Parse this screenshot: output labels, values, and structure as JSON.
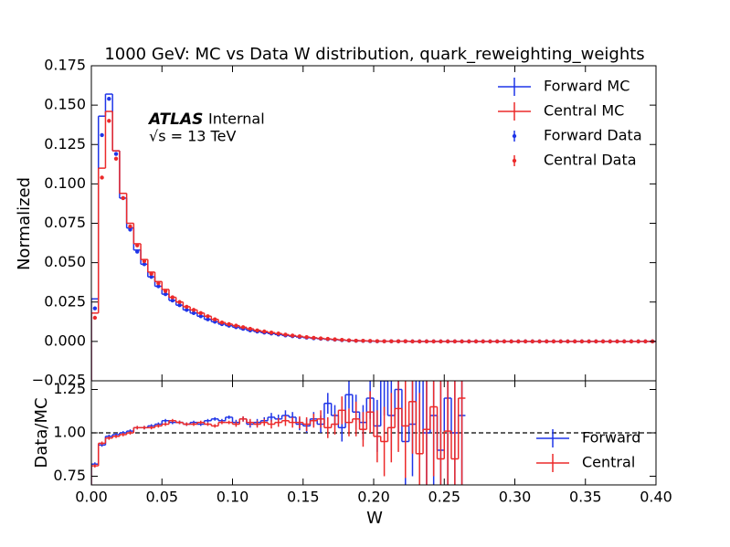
{
  "chart_data": [
    {
      "type": "histogram",
      "title": "1000 GeV: MC vs Data W distribution, quark_reweighting_weights",
      "ylabel": "Normalized",
      "annotations": [
        "ATLAS",
        "Internal",
        "√s = 13 TeV"
      ],
      "legend": "upper right",
      "xlim": [
        0,
        0.4
      ],
      "xticks": [
        0,
        0.05,
        0.1,
        0.15,
        0.2,
        0.25,
        0.3,
        0.35,
        0.4
      ],
      "ylim": [
        -0.025,
        0.175
      ],
      "yticks": [
        {
          "value": -0.025,
          "label": "−0.025"
        },
        {
          "value": 0,
          "label": "0.000"
        },
        0.025,
        {
          "value": 0.05,
          "label": "0.050"
        },
        0.075,
        {
          "value": 0.1,
          "label": "0.100"
        },
        0.125,
        {
          "value": 0.15,
          "label": "0.150"
        },
        0.175
      ],
      "bins": [
        0,
        0.005,
        0.01,
        0.015,
        0.02,
        0.025,
        0.03,
        0.035,
        0.04,
        0.045,
        0.05,
        0.055,
        0.06,
        0.065,
        0.07,
        0.075,
        0.08,
        0.085,
        0.09,
        0.095,
        0.1,
        0.105,
        0.11,
        0.115,
        0.12,
        0.125,
        0.13,
        0.135,
        0.14,
        0.145,
        0.15,
        0.155,
        0.16,
        0.165,
        0.17,
        0.175,
        0.18,
        0.185,
        0.19,
        0.195,
        0.2,
        0.205,
        0.21,
        0.215,
        0.22,
        0.225,
        0.23,
        0.235,
        0.24,
        0.245,
        0.25,
        0.255,
        0.26,
        0.265,
        0.27,
        0.275,
        0.28,
        0.285,
        0.29,
        0.295,
        0.3,
        0.305,
        0.31,
        0.315,
        0.32,
        0.325,
        0.33,
        0.335,
        0.34,
        0.345,
        0.35,
        0.355,
        0.36,
        0.365,
        0.37,
        0.375,
        0.38,
        0.385,
        0.39,
        0.395,
        0.4
      ],
      "series": [
        {
          "name": "Forward MC",
          "color": "#1f35e8",
          "style": "step",
          "values": [
            0.027,
            0.143,
            0.157,
            0.121,
            0.091,
            0.072,
            0.058,
            0.049,
            0.041,
            0.035,
            0.03,
            0.026,
            0.023,
            0.02,
            0.018,
            0.016,
            0.014,
            0.0125,
            0.011,
            0.01,
            0.009,
            0.008,
            0.007,
            0.0063,
            0.0056,
            0.005,
            0.0044,
            0.0038,
            0.0033,
            0.0028,
            0.0024,
            0.002,
            0.0017,
            0.0014,
            0.0011,
            0.0008,
            0.0006,
            0.0004,
            0.0003,
            0.0002,
            0.0001,
            0.0001,
            0.0001,
            0.0001,
            0.0001,
            0,
            0,
            0,
            0,
            0,
            0,
            0,
            0,
            0,
            0,
            0,
            0,
            0,
            0,
            0,
            0,
            0,
            0,
            0,
            0,
            0,
            0,
            0,
            0,
            0,
            0,
            0,
            0,
            0,
            0,
            0,
            0,
            0,
            0,
            0
          ]
        },
        {
          "name": "Central MC",
          "color": "#ec2a2a",
          "style": "step",
          "values": [
            0.018,
            0.11,
            0.146,
            0.121,
            0.094,
            0.075,
            0.062,
            0.052,
            0.044,
            0.038,
            0.033,
            0.028,
            0.025,
            0.022,
            0.02,
            0.018,
            0.016,
            0.014,
            0.012,
            0.011,
            0.01,
            0.009,
            0.008,
            0.007,
            0.0063,
            0.0056,
            0.005,
            0.0043,
            0.0037,
            0.0032,
            0.0027,
            0.0023,
            0.0019,
            0.0016,
            0.0013,
            0.001,
            0.0007,
            0.0005,
            0.0004,
            0.0003,
            0.0002,
            0.0001,
            0.0001,
            0.0001,
            0.0001,
            0,
            0,
            0,
            0,
            0,
            0,
            0,
            0,
            0,
            0,
            0,
            0,
            0,
            0,
            0,
            0,
            0,
            0,
            0,
            0,
            0,
            0,
            0,
            0,
            0,
            0,
            0,
            0,
            0,
            0,
            0,
            0,
            0,
            0,
            0
          ]
        },
        {
          "name": "Forward Data",
          "color": "#1f35e8",
          "style": "points",
          "values": [
            0.021,
            0.131,
            0.154,
            0.119,
            0.091,
            0.071,
            0.057,
            0.049,
            0.041,
            0.035,
            0.03,
            0.026,
            0.023,
            0.02,
            0.018,
            0.016,
            0.014,
            0.0125,
            0.011,
            0.01,
            0.009,
            0.008,
            0.007,
            0.0063,
            0.0056,
            0.005,
            0.0044,
            0.0038,
            0.0033,
            0.0028,
            0.0024,
            0.002,
            0.0017,
            0.0014,
            0.0011,
            0.0008,
            0.0006,
            0.0004,
            0.0003,
            0.0002,
            0.0001,
            0.0001,
            0.0001,
            0.0001,
            0.0001,
            0,
            0,
            0,
            0,
            0,
            0,
            0,
            0,
            0,
            0,
            0,
            0,
            0,
            0,
            0,
            0,
            0,
            0,
            0,
            0,
            0,
            0,
            0,
            0,
            0,
            0,
            0,
            0,
            0,
            0,
            0,
            0,
            0,
            0,
            0
          ]
        },
        {
          "name": "Central Data",
          "color": "#ec2a2a",
          "style": "points",
          "values": [
            0.015,
            0.104,
            0.14,
            0.116,
            0.091,
            0.073,
            0.061,
            0.051,
            0.043,
            0.037,
            0.032,
            0.028,
            0.025,
            0.022,
            0.02,
            0.018,
            0.016,
            0.014,
            0.012,
            0.011,
            0.01,
            0.009,
            0.008,
            0.007,
            0.0063,
            0.0056,
            0.005,
            0.0043,
            0.0037,
            0.0032,
            0.0027,
            0.0023,
            0.0019,
            0.0016,
            0.0013,
            0.001,
            0.0007,
            0.0005,
            0.0004,
            0.0003,
            0.0002,
            0.0001,
            0.0001,
            0.0001,
            0.0001,
            0,
            0,
            0,
            0,
            0,
            0,
            0,
            0,
            0,
            0,
            0,
            0,
            0,
            0,
            0,
            0,
            0,
            0,
            0,
            0,
            0,
            0,
            0,
            0,
            0,
            0,
            0,
            0,
            0,
            0,
            0,
            0,
            0,
            0,
            0
          ]
        }
      ]
    },
    {
      "type": "ratio",
      "xlabel": "W",
      "ylabel": "Data/MC",
      "legend": "lower right",
      "reference_line": 1,
      "xlim": [
        0,
        0.4
      ],
      "xticks": [
        {
          "value": 0,
          "label": "0.00"
        },
        0.05,
        {
          "value": 0.1,
          "label": "0.10"
        },
        0.15,
        {
          "value": 0.2,
          "label": "0.20"
        },
        0.25,
        {
          "value": 0.3,
          "label": "0.30"
        },
        0.35,
        {
          "value": 0.4,
          "label": "0.40"
        }
      ],
      "ylim": [
        0.7,
        1.3
      ],
      "yticks": [
        0.75,
        {
          "value": 1,
          "label": "1.00"
        },
        1.25
      ],
      "series": [
        {
          "name": "Forward",
          "color": "#1f35e8",
          "values": [
            0.82,
            0.93,
            0.98,
            0.99,
            1.0,
            1.01,
            1.03,
            1.03,
            1.04,
            1.05,
            1.07,
            1.06,
            1.06,
            1.05,
            1.06,
            1.05,
            1.07,
            1.08,
            1.07,
            1.09,
            1.06,
            1.08,
            1.05,
            1.06,
            1.07,
            1.09,
            1.08,
            1.1,
            1.09,
            1.05,
            1.04,
            1.08,
            1.05,
            1.17,
            1.1,
            1.03,
            1.22,
            1.12,
            1.06,
            1.2,
            1.04,
            1.3,
            1.1,
            1.25,
            0.95,
            1.05,
            1.35,
            1.0,
            1.1,
            0.9,
            1.2,
            1.0,
            1.1,
            null,
            null,
            null,
            null,
            null,
            null,
            null,
            null,
            null,
            null,
            null,
            null,
            null,
            null,
            null,
            null,
            null,
            null,
            null,
            null,
            null,
            null,
            null,
            null,
            null,
            null,
            null
          ],
          "errors": [
            0.01,
            0.01,
            0.01,
            0.01,
            0.01,
            0.01,
            0.01,
            0.01,
            0.01,
            0.01,
            0.01,
            0.01,
            0.01,
            0.01,
            0.01,
            0.01,
            0.01,
            0.01,
            0.01,
            0.01,
            0.015,
            0.015,
            0.02,
            0.02,
            0.02,
            0.025,
            0.025,
            0.03,
            0.03,
            0.035,
            0.04,
            0.04,
            0.05,
            0.06,
            0.06,
            0.08,
            0.08,
            0.1,
            0.1,
            0.12,
            0.15,
            0.2,
            0.2,
            0.25,
            0.3,
            0.3,
            0.35,
            0.4,
            0.4,
            0.5,
            0.5,
            0.6,
            0.6,
            null,
            null,
            null,
            null,
            null,
            null,
            null,
            null,
            null,
            null,
            null,
            null,
            null,
            null,
            null,
            null,
            null,
            null,
            null,
            null,
            null,
            null,
            null,
            null,
            null,
            null,
            null
          ]
        },
        {
          "name": "Central",
          "color": "#ec2a2a",
          "values": [
            0.81,
            0.94,
            0.97,
            0.98,
            0.99,
            1.0,
            1.03,
            1.03,
            1.03,
            1.04,
            1.05,
            1.07,
            1.06,
            1.05,
            1.05,
            1.06,
            1.05,
            1.04,
            1.06,
            1.06,
            1.05,
            1.08,
            1.06,
            1.05,
            1.06,
            1.05,
            1.06,
            1.07,
            1.06,
            1.06,
            1.05,
            1.07,
            1.08,
            1.03,
            1.05,
            1.13,
            1.06,
            1.08,
            1.02,
            1.12,
            0.98,
            0.95,
            1.03,
            1.14,
            1.04,
            1.18,
            0.88,
            1.02,
            1.15,
            0.85,
            1.01,
            0.85,
            1.2,
            null,
            null,
            null,
            null,
            null,
            null,
            null,
            null,
            null,
            null,
            null,
            null,
            null,
            null,
            null,
            null,
            null,
            null,
            null,
            null,
            null,
            null,
            null,
            null,
            null,
            null,
            null
          ],
          "errors": [
            0.01,
            0.01,
            0.01,
            0.01,
            0.01,
            0.01,
            0.01,
            0.01,
            0.01,
            0.01,
            0.01,
            0.01,
            0.01,
            0.01,
            0.01,
            0.01,
            0.01,
            0.01,
            0.01,
            0.01,
            0.015,
            0.015,
            0.02,
            0.02,
            0.02,
            0.025,
            0.025,
            0.03,
            0.03,
            0.035,
            0.04,
            0.04,
            0.05,
            0.06,
            0.06,
            0.08,
            0.08,
            0.1,
            0.1,
            0.12,
            0.15,
            0.2,
            0.2,
            0.25,
            0.3,
            0.3,
            0.35,
            0.4,
            0.4,
            0.5,
            0.5,
            0.6,
            0.6,
            null,
            null,
            null,
            null,
            null,
            null,
            null,
            null,
            null,
            null,
            null,
            null,
            null,
            null,
            null,
            null,
            null,
            null,
            null,
            null,
            null,
            null,
            null,
            null,
            null,
            null,
            null
          ]
        }
      ]
    }
  ]
}
